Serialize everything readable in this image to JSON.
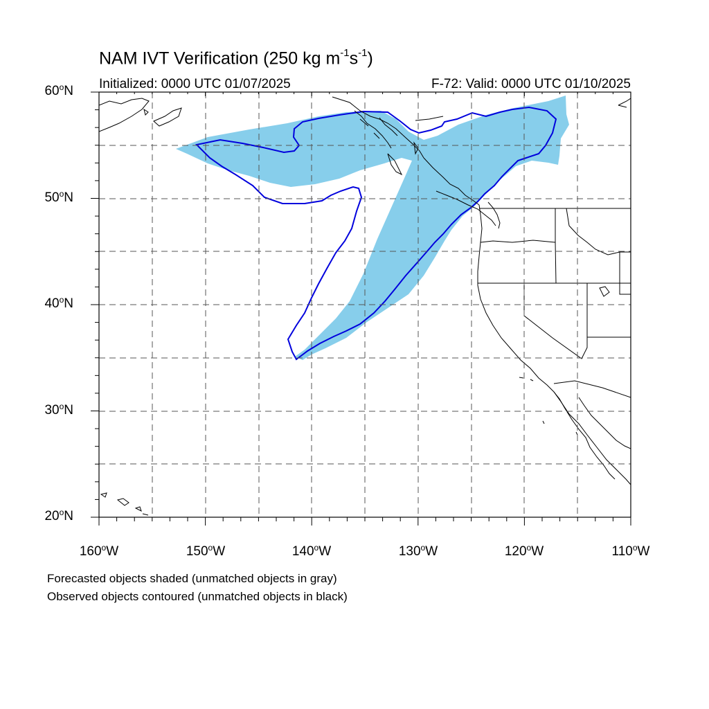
{
  "title": {
    "main": "NAM IVT Verification (250 kg m",
    "exp1": "-1",
    "mid": "s",
    "exp2": "-1",
    "close": ")"
  },
  "subtitle": {
    "initialized": "Initialized: 0000 UTC 01/07/2025",
    "valid": "F-72: Valid: 0000 UTC 01/10/2025"
  },
  "lat_labels": [
    {
      "value": "60",
      "hemi": "N"
    },
    {
      "value": "50",
      "hemi": "N"
    },
    {
      "value": "40",
      "hemi": "N"
    },
    {
      "value": "30",
      "hemi": "N"
    },
    {
      "value": "20",
      "hemi": "N"
    }
  ],
  "lon_labels": [
    {
      "value": "160",
      "hemi": "W"
    },
    {
      "value": "150",
      "hemi": "W"
    },
    {
      "value": "140",
      "hemi": "W"
    },
    {
      "value": "130",
      "hemi": "W"
    },
    {
      "value": "120",
      "hemi": "W"
    },
    {
      "value": "110",
      "hemi": "W"
    }
  ],
  "degree_symbol": "o",
  "notes": {
    "forecast": "Forecasted objects shaded (unmatched objects in gray)",
    "observed": "Observed objects contoured (unmatched objects in black)"
  },
  "map": {
    "lon_range": [
      -160,
      -110
    ],
    "lat_range": [
      20,
      60
    ],
    "forecast_fill_color": "#87ceeb",
    "observed_contour_color": "#0000dd",
    "coast_color": "#000000",
    "grid": "dashed every 5 degrees"
  }
}
